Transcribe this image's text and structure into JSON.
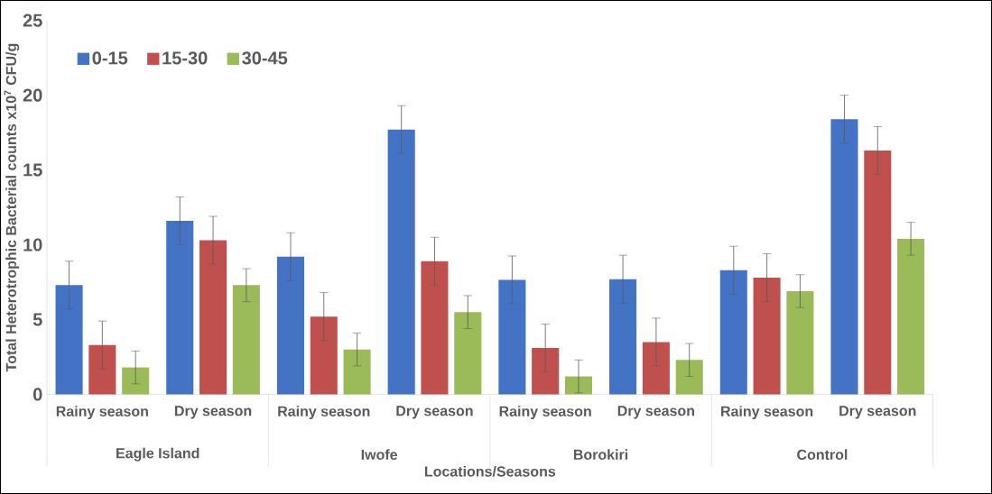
{
  "chart_data": {
    "type": "bar",
    "xlabel": "Locations/Seasons",
    "ylabel": "Total Heterotrophic Bacterial counts x10$^{7}$ CFU/g",
    "categories": [
      "Rainy season",
      "Dry season",
      "Rainy season",
      "Dry season",
      "Rainy season",
      "Dry season",
      "Rainy season",
      "Dry season"
    ],
    "annotations": [
      "Eagle Island",
      "Iwofe",
      "Borokiri",
      "Control"
    ],
    "series": [
      {
        "name": "0-15",
        "color": "#4472c4",
        "values": [
          7.3,
          11.6,
          9.2,
          17.7,
          7.65,
          7.7,
          8.3,
          18.4
        ],
        "errors": [
          1.6,
          1.6,
          1.6,
          1.6,
          1.6,
          1.6,
          1.6,
          1.6
        ]
      },
      {
        "name": "15-30",
        "color": "#c0504d",
        "values": [
          3.3,
          10.3,
          5.2,
          8.9,
          3.1,
          3.5,
          7.8,
          16.3
        ],
        "errors": [
          1.6,
          1.6,
          1.6,
          1.6,
          1.6,
          1.6,
          1.6,
          1.6
        ]
      },
      {
        "name": "30-45",
        "color": "#9bbb59",
        "values": [
          1.8,
          7.3,
          3.0,
          5.5,
          1.2,
          2.3,
          6.9,
          10.4
        ],
        "errors": [
          1.1,
          1.1,
          1.1,
          1.1,
          1.1,
          1.1,
          1.1,
          1.1
        ]
      }
    ],
    "ylim": [
      0,
      25
    ],
    "yticks": [
      0,
      5,
      10,
      15,
      20,
      25
    ],
    "grid": false,
    "legend": "top left"
  }
}
